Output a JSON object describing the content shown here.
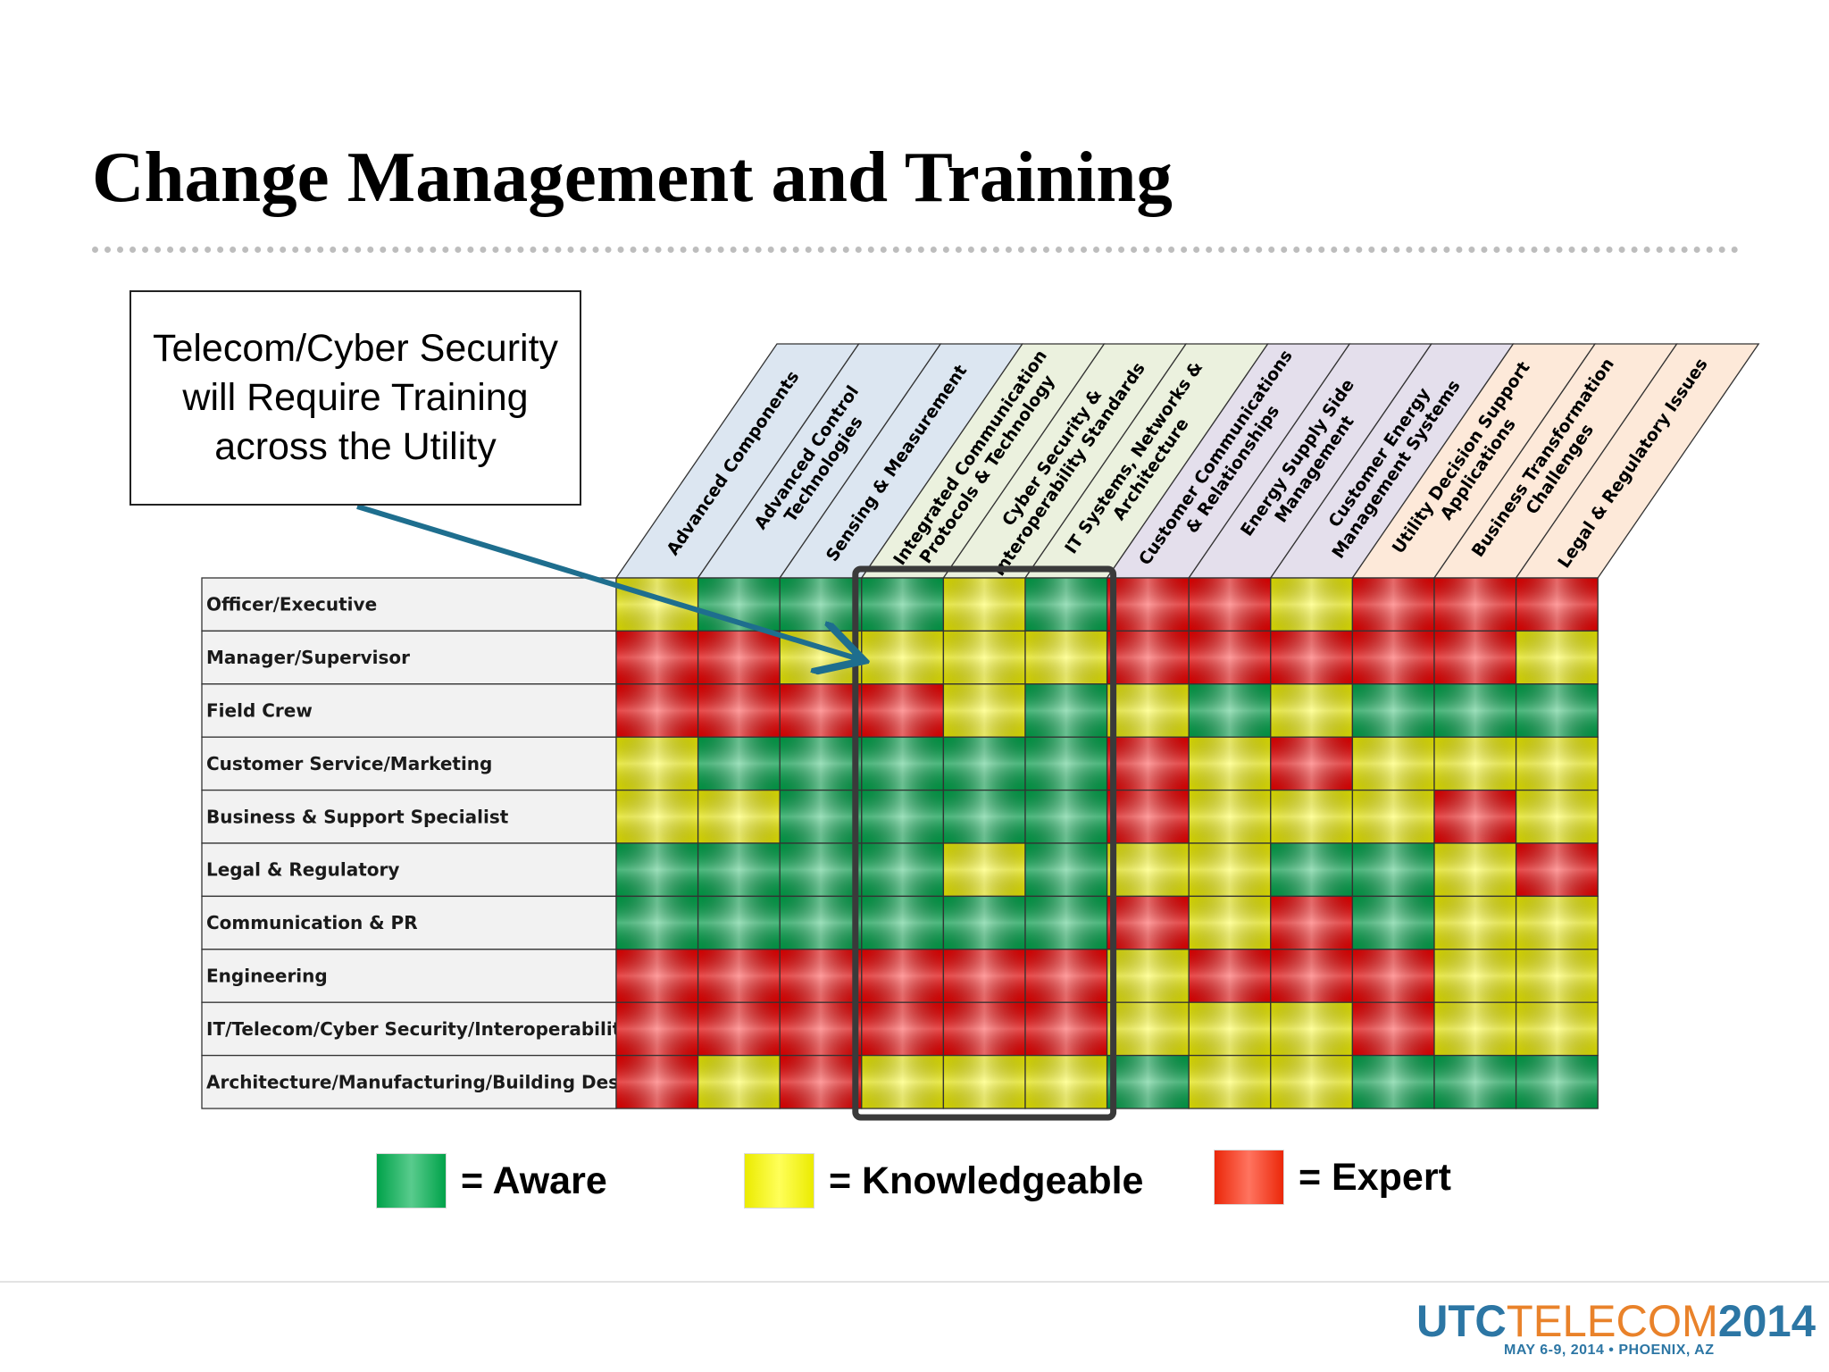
{
  "slide": {
    "title": "Change Management and Training",
    "callout": "Telecom/Cyber Security will Require Training across the Utility"
  },
  "matrix": {
    "columns": [
      [
        "Advanced Components"
      ],
      [
        "Advanced Control",
        "Technologies"
      ],
      [
        "Sensing & Measurement"
      ],
      [
        "Integrated Communication",
        "Protocols & Technology"
      ],
      [
        "Cyber Security &",
        "Interoperability Standards"
      ],
      [
        "IT Systems, Networks &",
        "Architecture"
      ],
      [
        "Customer Communications",
        "& Relationships"
      ],
      [
        "Energy Supply Side",
        "Management"
      ],
      [
        "Customer Energy",
        "Management Systems"
      ],
      [
        "Utility Decision Support",
        "Applications"
      ],
      [
        "Business Transformation",
        "Challenges"
      ],
      [
        "Legal & Regulatory Issues"
      ]
    ],
    "column_group_colors": [
      "#dce6f1",
      "#dce6f1",
      "#dce6f1",
      "#ebf1de",
      "#ebf1de",
      "#ebf1de",
      "#e4dfec",
      "#e4dfec",
      "#e4dfec",
      "#fde9d9",
      "#fde9d9",
      "#fde9d9"
    ],
    "rows": [
      {
        "label": "Officer/Executive",
        "levels": [
          "Y",
          "G",
          "G",
          "G",
          "Y",
          "G",
          "R",
          "R",
          "Y",
          "R",
          "R",
          "R"
        ]
      },
      {
        "label": "Manager/Supervisor",
        "levels": [
          "R",
          "R",
          "Y",
          "Y",
          "Y",
          "Y",
          "R",
          "R",
          "R",
          "R",
          "R",
          "Y"
        ]
      },
      {
        "label": "Field Crew",
        "levels": [
          "R",
          "R",
          "R",
          "R",
          "Y",
          "G",
          "Y",
          "G",
          "Y",
          "G",
          "G",
          "G"
        ]
      },
      {
        "label": "Customer Service/Marketing",
        "levels": [
          "Y",
          "G",
          "G",
          "G",
          "G",
          "G",
          "R",
          "Y",
          "R",
          "Y",
          "Y",
          "Y"
        ]
      },
      {
        "label": "Business & Support Specialist",
        "levels": [
          "Y",
          "Y",
          "G",
          "G",
          "G",
          "G",
          "R",
          "Y",
          "Y",
          "Y",
          "R",
          "Y"
        ]
      },
      {
        "label": "Legal & Regulatory",
        "levels": [
          "G",
          "G",
          "G",
          "G",
          "Y",
          "G",
          "Y",
          "Y",
          "G",
          "G",
          "Y",
          "R"
        ]
      },
      {
        "label": "Communication & PR",
        "levels": [
          "G",
          "G",
          "G",
          "G",
          "G",
          "G",
          "R",
          "Y",
          "R",
          "G",
          "Y",
          "Y"
        ]
      },
      {
        "label": "Engineering",
        "levels": [
          "R",
          "R",
          "R",
          "R",
          "R",
          "R",
          "Y",
          "R",
          "R",
          "R",
          "Y",
          "Y"
        ]
      },
      {
        "label": "IT/Telecom/Cyber Security/Interoperability",
        "levels": [
          "R",
          "R",
          "R",
          "R",
          "R",
          "R",
          "Y",
          "Y",
          "Y",
          "R",
          "Y",
          "Y"
        ]
      },
      {
        "label": "Architecture/Manufacturing/Building Design",
        "levels": [
          "R",
          "Y",
          "R",
          "Y",
          "Y",
          "Y",
          "G",
          "Y",
          "Y",
          "G",
          "G",
          "G"
        ]
      }
    ],
    "level_colors": {
      "G": "#00b050",
      "Y": "#ffff00",
      "R": "#ff0000"
    },
    "highlight_columns": [
      3,
      5
    ],
    "arrow_color": "#1e6e8e"
  },
  "legend": [
    {
      "label": "= Aware",
      "color": "#00b050"
    },
    {
      "label": "= Knowledgeable",
      "color": "#ffff00"
    },
    {
      "label": "= Expert",
      "color": "#ff2a0a"
    }
  ],
  "branding": {
    "utc": "UTC",
    "telecom": "TELECOM",
    "year": "2014",
    "subline": "MAY 6-9, 2014  •  PHOENIX, AZ",
    "colors": {
      "utc": "#2c76a4",
      "telecom": "#e9822a",
      "year": "#2c76a4"
    }
  }
}
